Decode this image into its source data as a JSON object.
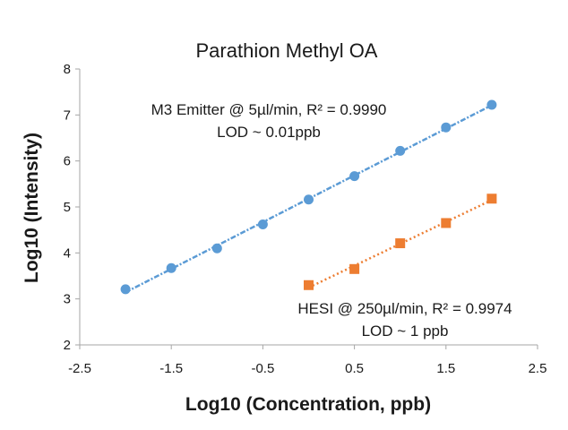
{
  "chart_data": {
    "type": "scatter",
    "title": "Parathion Methyl OA",
    "xlabel": "Log10 (Concentration, ppb)",
    "ylabel": "Log10 (Intensity)",
    "xlim": [
      -2.5,
      2.5
    ],
    "ylim": [
      2,
      8
    ],
    "x_ticks": [
      "-2.5",
      "-1.5",
      "-0.5",
      "0.5",
      "1.5",
      "2.5"
    ],
    "x_tick_values": [
      -2.5,
      -1.5,
      -0.5,
      0.5,
      1.5,
      2.5
    ],
    "y_ticks": [
      "2",
      "3",
      "4",
      "5",
      "6",
      "7",
      "8"
    ],
    "y_tick_values": [
      2,
      3,
      4,
      5,
      6,
      7,
      8
    ],
    "grid": false,
    "series": [
      {
        "name": "M3 Emitter @ 5µl/min",
        "marker": "circle",
        "color": "#5b9bd5",
        "trendline": "linear",
        "x": [
          -2,
          -1.5,
          -1,
          -0.5,
          0,
          0.5,
          1,
          1.5,
          2
        ],
        "y": [
          3.21,
          3.67,
          4.1,
          4.62,
          5.16,
          5.67,
          6.22,
          6.73,
          7.22
        ]
      },
      {
        "name": "HESI @ 250µl/min",
        "marker": "square",
        "color": "#ed7d31",
        "trendline": "linear",
        "x": [
          0,
          0.5,
          1,
          1.5,
          2
        ],
        "y": [
          3.3,
          3.65,
          4.21,
          4.65,
          5.18
        ]
      }
    ],
    "annotations": [
      {
        "line1": "M3 Emitter @ 5µl/min, R² = 0.9990",
        "line2": "LOD ~ 0.01ppb"
      },
      {
        "line1": "HESI @ 250µl/min, R² = 0.9974",
        "line2": "LOD ~ 1 ppb"
      }
    ]
  }
}
